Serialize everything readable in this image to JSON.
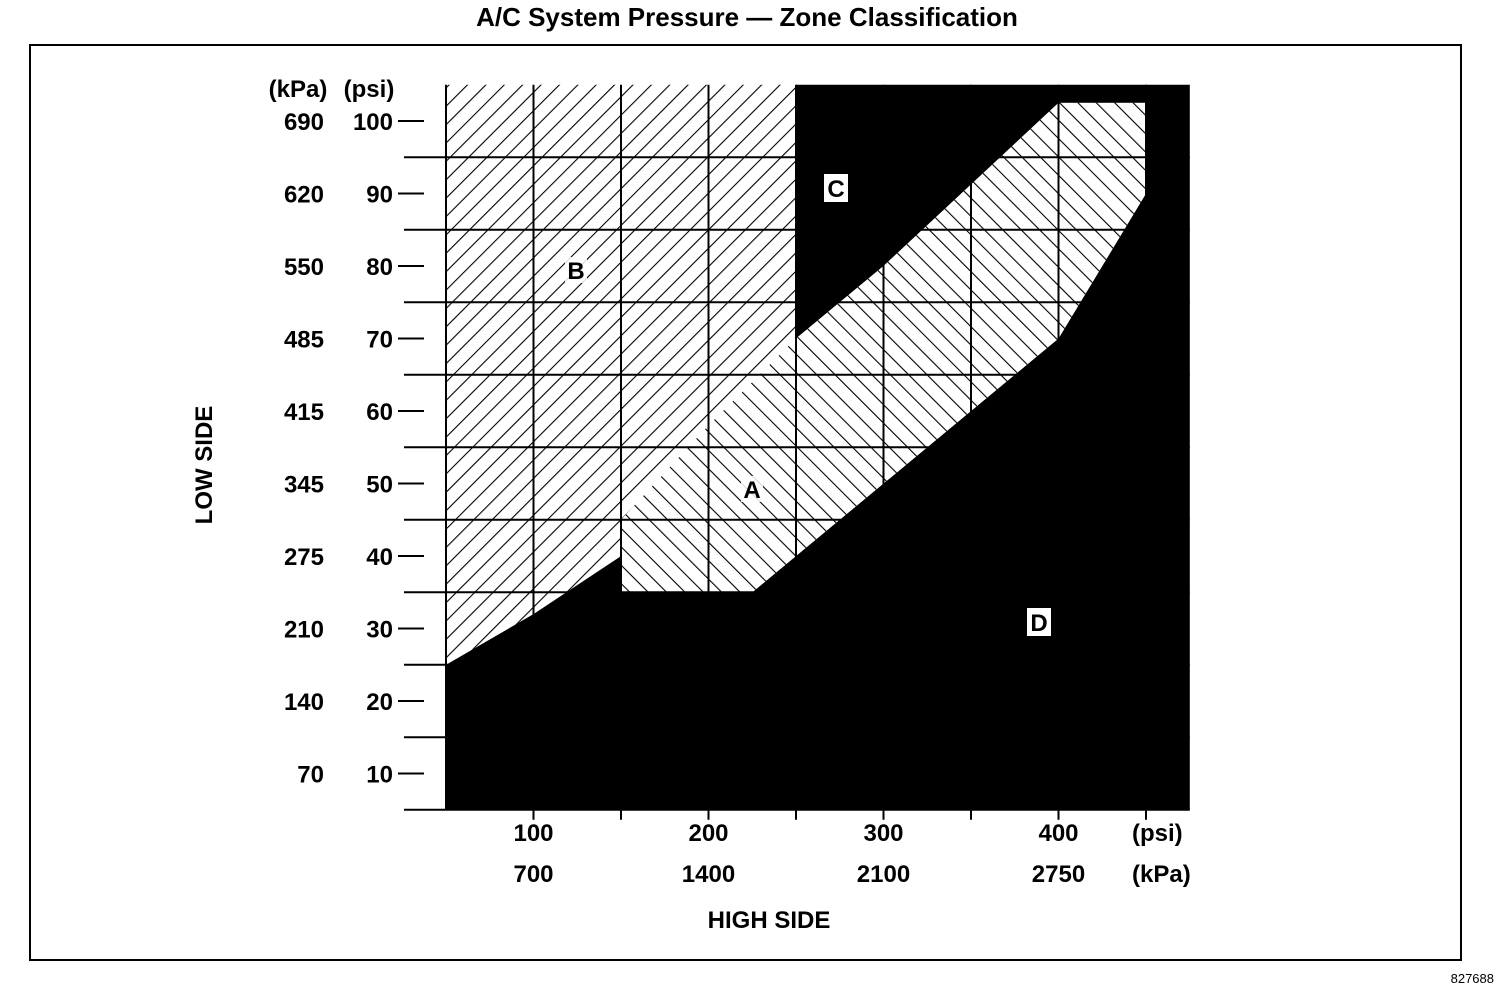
{
  "chart_data": {
    "type": "area",
    "title": "A/C System Pressure — Zone Classification",
    "xlabel": "HIGH SIDE",
    "ylabel": "LOW SIDE",
    "x_unit_labels": [
      "(psi)",
      "(kPa)"
    ],
    "y_unit_labels": [
      "(kPa)",
      "(psi)"
    ],
    "x_ticks_psi": [
      "100",
      "200",
      "300",
      "400"
    ],
    "x_ticks_kpa": [
      "700",
      "1400",
      "2100",
      "2750"
    ],
    "y_ticks_psi": [
      "100",
      "90",
      "80",
      "70",
      "60",
      "50",
      "40",
      "30",
      "20",
      "10"
    ],
    "y_ticks_kpa": [
      "690",
      "620",
      "550",
      "485",
      "415",
      "345",
      "275",
      "210",
      "140",
      "70"
    ],
    "xlim_psi": [
      50,
      475
    ],
    "ylim_psi": [
      5,
      105
    ],
    "grid": true,
    "zones": [
      {
        "label": "A",
        "fill": "hatch-left",
        "polygon_psi": [
          [
            150,
            40
          ],
          [
            150,
            35
          ],
          [
            225,
            35
          ],
          [
            250,
            40
          ],
          [
            300,
            50
          ],
          [
            350,
            60
          ],
          [
            400,
            70
          ],
          [
            450,
            90
          ],
          [
            450,
            102.5
          ],
          [
            400,
            102.5
          ],
          [
            300,
            80
          ],
          [
            250,
            70
          ],
          [
            200,
            58
          ],
          [
            150,
            45
          ]
        ]
      },
      {
        "label": "B",
        "fill": "hatch-right",
        "polygon_psi": [
          [
            50,
            25
          ],
          [
            100,
            32
          ],
          [
            150,
            40
          ],
          [
            150,
            45
          ],
          [
            200,
            58
          ],
          [
            250,
            70
          ],
          [
            250,
            105
          ],
          [
            50,
            105
          ]
        ]
      },
      {
        "label": "C",
        "fill": "#000000",
        "polygon_psi": [
          [
            250,
            70
          ],
          [
            300,
            80
          ],
          [
            400,
            102.5
          ],
          [
            450,
            102.5
          ],
          [
            450,
            105
          ],
          [
            250,
            105
          ]
        ]
      },
      {
        "label": "D",
        "fill": "#000000",
        "polygon_psi": [
          [
            50,
            5
          ],
          [
            475,
            5
          ],
          [
            475,
            105
          ],
          [
            450,
            105
          ],
          [
            450,
            90
          ],
          [
            400,
            70
          ],
          [
            350,
            60
          ],
          [
            300,
            50
          ],
          [
            250,
            40
          ],
          [
            225,
            35
          ],
          [
            150,
            35
          ],
          [
            150,
            40
          ],
          [
            100,
            32
          ],
          [
            50,
            25
          ]
        ]
      }
    ]
  },
  "figure_code": "827688"
}
